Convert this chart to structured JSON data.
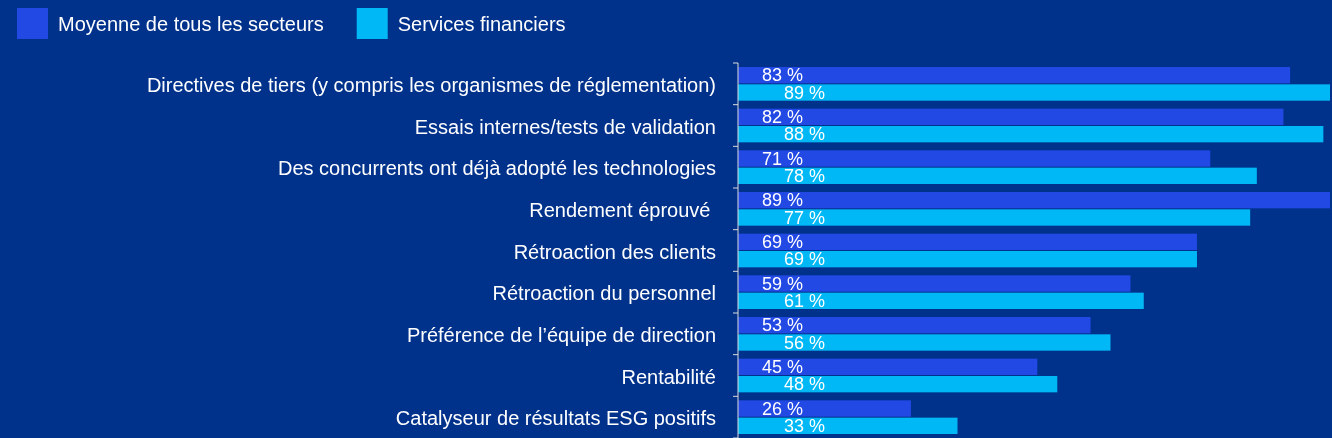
{
  "chart_data": {
    "type": "bar",
    "orientation": "horizontal",
    "categories": [
      "Directives de tiers (y compris les organismes de réglementation)",
      "Essais internes/tests de validation",
      "Des concurrents ont déjà adopté les technologies",
      "Rendement éprouvé ",
      "Rétroaction des clients",
      "Rétroaction du personnel",
      "Préférence de l’équipe de direction",
      "Rentabilité",
      "Catalyseur de résultats ESG positifs"
    ],
    "series": [
      {
        "name": "Moyenne de tous les secteurs",
        "color": "#2249e3",
        "values": [
          83,
          82,
          71,
          89,
          69,
          59,
          53,
          45,
          26
        ],
        "value_labels": [
          "83 %",
          "82 %",
          "71 %",
          "89 %",
          "69 %",
          "59 %",
          "53 %",
          "45 %",
          "26 %"
        ]
      },
      {
        "name": "Services financiers",
        "color": "#00b8f5",
        "values": [
          89,
          88,
          78,
          77,
          69,
          61,
          56,
          48,
          33
        ],
        "value_labels": [
          "89 %",
          "88 %",
          "78 %",
          "77 %",
          "69 %",
          "61 %",
          "56 %",
          "48 %",
          "33 %"
        ]
      }
    ],
    "legend": "top left",
    "tick_labels": "y"
  }
}
